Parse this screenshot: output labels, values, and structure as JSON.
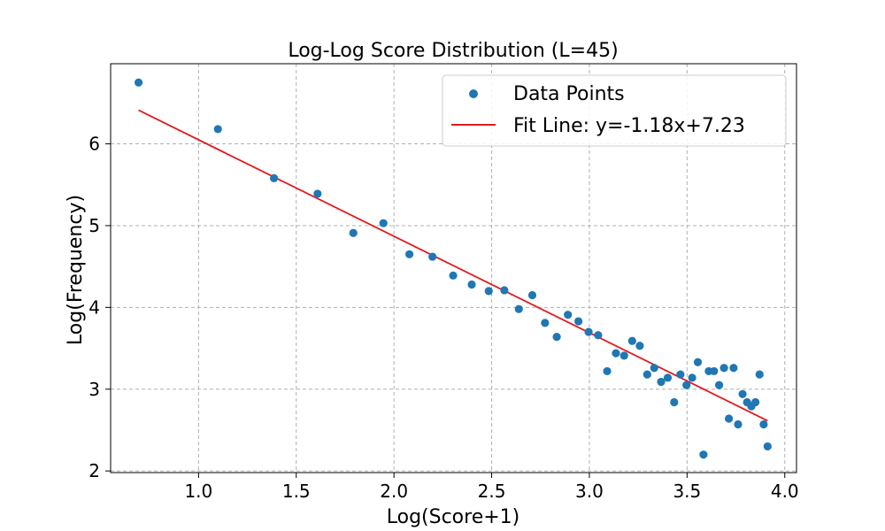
{
  "chart_data": {
    "type": "scatter",
    "title": "Log-Log Score Distribution (L=45)",
    "xlabel": "Log(Score+1)",
    "ylabel": "Log(Frequency)",
    "xlim": [
      0.55,
      4.06
    ],
    "ylim": [
      1.98,
      6.98
    ],
    "xticks": [
      1.0,
      1.5,
      2.0,
      2.5,
      3.0,
      3.5,
      4.0
    ],
    "xtick_labels": [
      "1.0",
      "1.5",
      "2.0",
      "2.5",
      "3.0",
      "3.5",
      "4.0"
    ],
    "yticks": [
      2,
      3,
      4,
      5,
      6
    ],
    "ytick_labels": [
      "2",
      "3",
      "4",
      "5",
      "6"
    ],
    "grid": true,
    "legend_position": "top-right",
    "series": [
      {
        "name": "Data Points",
        "kind": "scatter",
        "color": "#1f77b4",
        "points": [
          [
            0.693,
            6.75
          ],
          [
            1.099,
            6.18
          ],
          [
            1.386,
            5.58
          ],
          [
            1.609,
            5.39
          ],
          [
            1.792,
            4.91
          ],
          [
            1.946,
            5.03
          ],
          [
            2.079,
            4.65
          ],
          [
            2.197,
            4.62
          ],
          [
            2.303,
            4.39
          ],
          [
            2.398,
            4.28
          ],
          [
            2.485,
            4.2
          ],
          [
            2.565,
            4.21
          ],
          [
            2.639,
            3.98
          ],
          [
            2.708,
            4.15
          ],
          [
            2.773,
            3.81
          ],
          [
            2.833,
            3.64
          ],
          [
            2.89,
            3.91
          ],
          [
            2.944,
            3.83
          ],
          [
            2.996,
            3.7
          ],
          [
            3.045,
            3.66
          ],
          [
            3.091,
            3.22
          ],
          [
            3.136,
            3.44
          ],
          [
            3.178,
            3.41
          ],
          [
            3.219,
            3.59
          ],
          [
            3.258,
            3.53
          ],
          [
            3.296,
            3.18
          ],
          [
            3.332,
            3.26
          ],
          [
            3.367,
            3.09
          ],
          [
            3.401,
            3.14
          ],
          [
            3.434,
            2.84
          ],
          [
            3.466,
            3.18
          ],
          [
            3.497,
            3.05
          ],
          [
            3.526,
            3.14
          ],
          [
            3.555,
            3.33
          ],
          [
            3.584,
            2.2
          ],
          [
            3.611,
            3.22
          ],
          [
            3.638,
            3.22
          ],
          [
            3.664,
            3.05
          ],
          [
            3.689,
            3.26
          ],
          [
            3.714,
            2.64
          ],
          [
            3.738,
            3.26
          ],
          [
            3.761,
            2.57
          ],
          [
            3.784,
            2.94
          ],
          [
            3.807,
            2.84
          ],
          [
            3.829,
            2.79
          ],
          [
            3.85,
            2.84
          ],
          [
            3.871,
            3.18
          ],
          [
            3.892,
            2.57
          ],
          [
            3.912,
            2.3
          ]
        ]
      },
      {
        "name": "Fit Line: y=-1.18x+7.23",
        "kind": "line",
        "color": "#e31a1c",
        "slope": -1.18,
        "intercept": 7.23,
        "x_range": [
          0.693,
          3.912
        ]
      }
    ]
  }
}
